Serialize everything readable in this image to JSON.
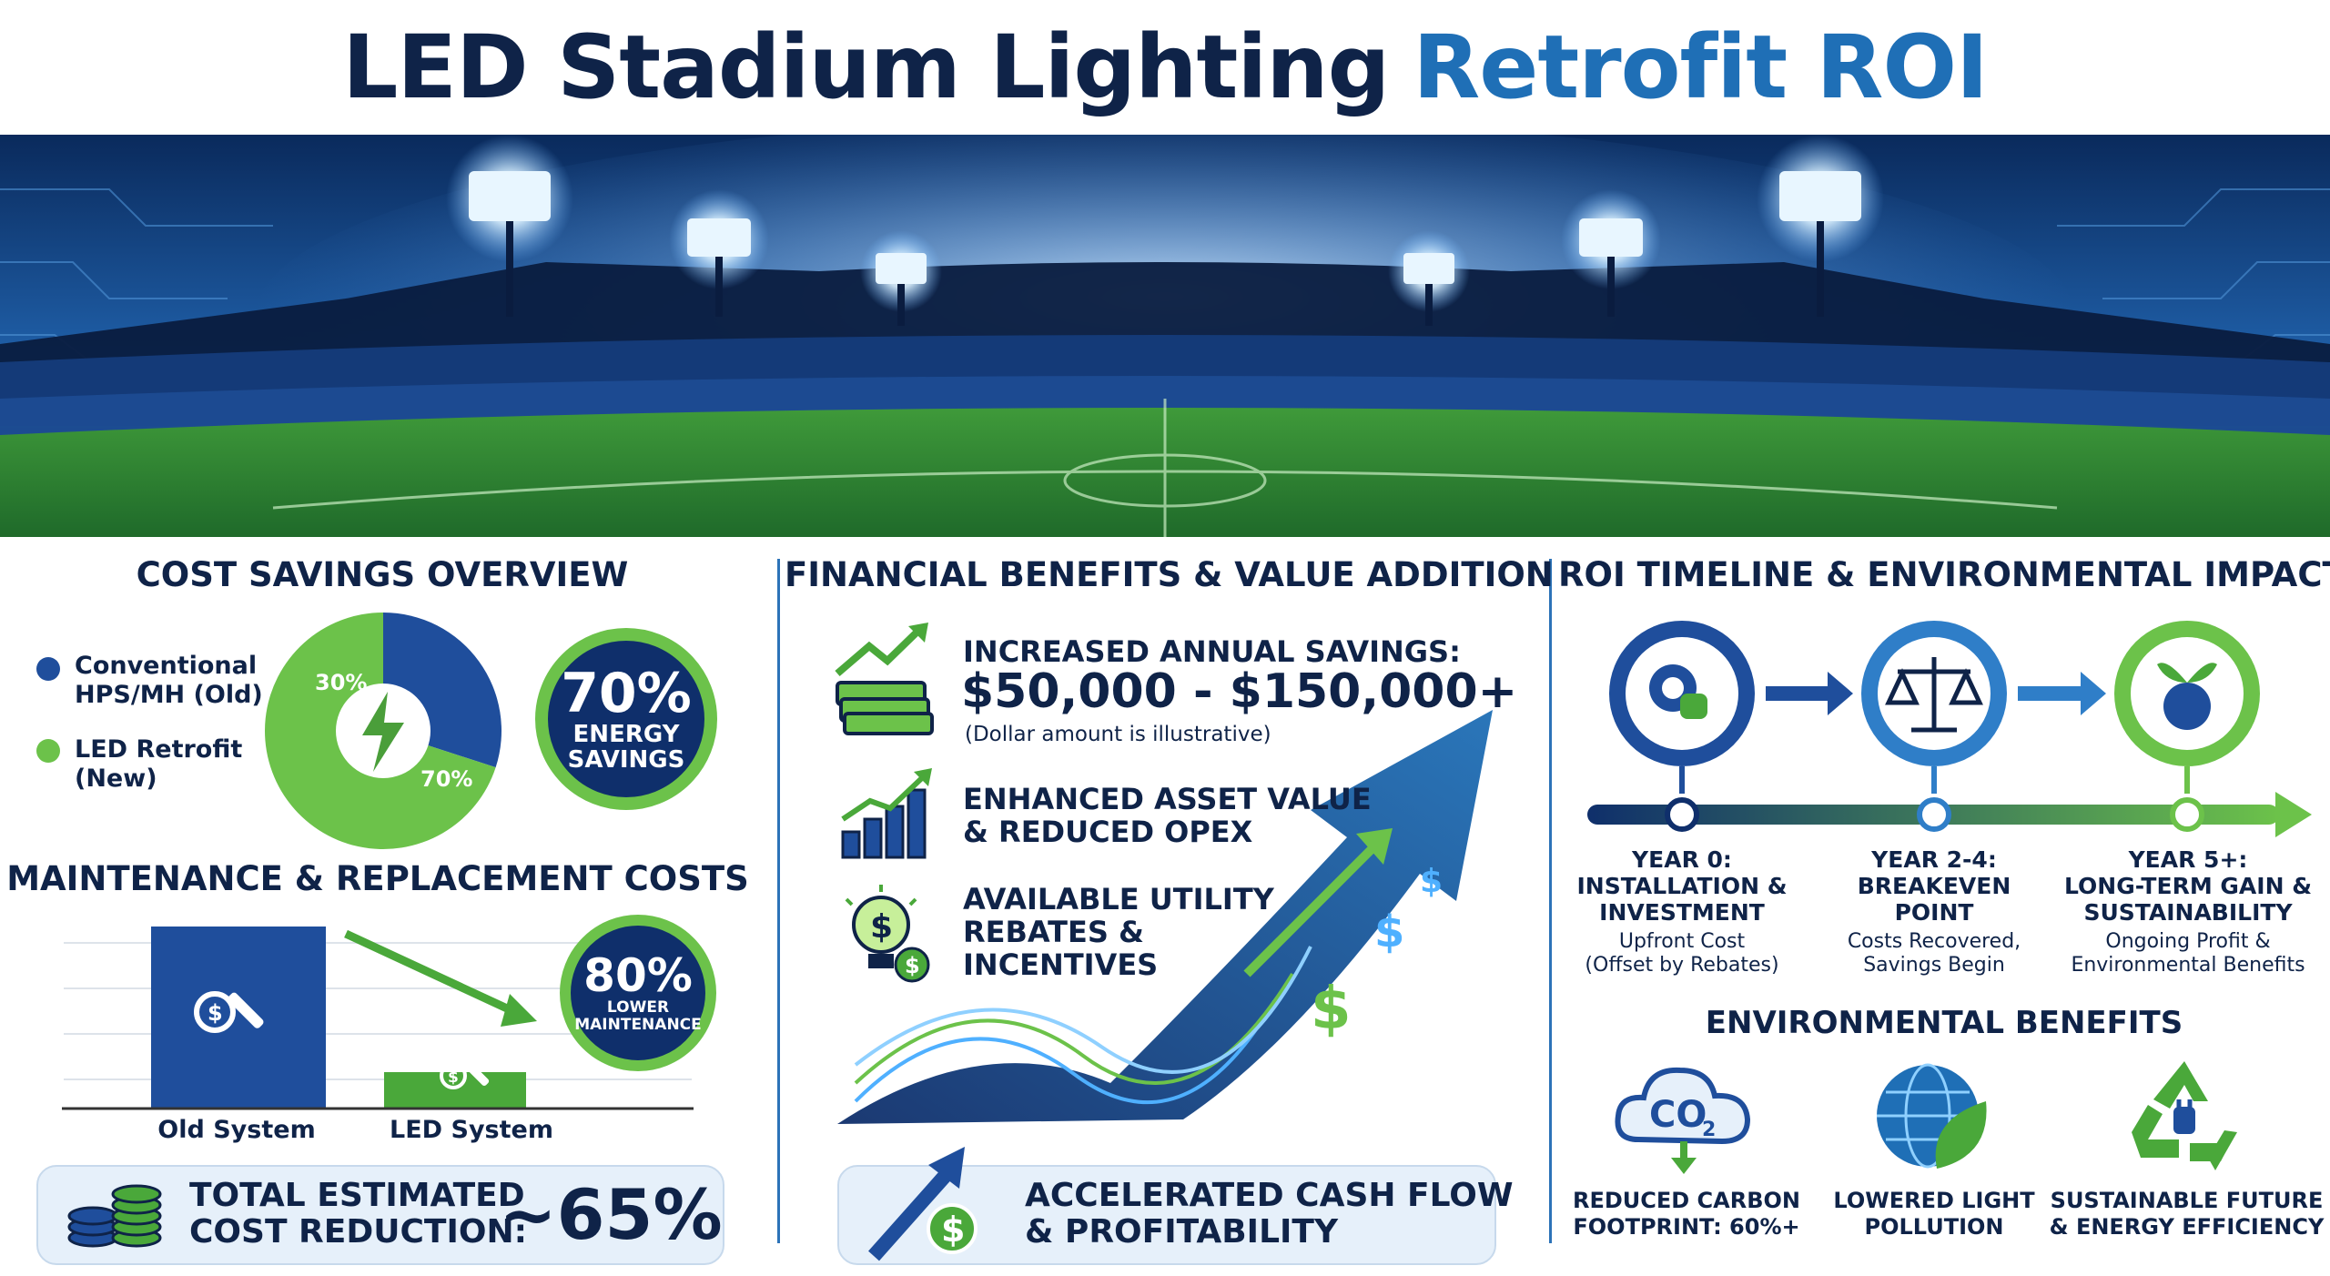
{
  "title": {
    "part1": "LED Stadium Lighting",
    "part2": "Retrofit ROI"
  },
  "colors": {
    "navy": "#0f2348",
    "blue": "#1f6fb6",
    "green": "#6cc24a",
    "light_panel": "#e6f0fa"
  },
  "cost_savings": {
    "section_title": "COST SAVINGS OVERVIEW",
    "legend": [
      {
        "label_line1": "Conventional",
        "label_line2": "HPS/MH (Old)",
        "color": "#1f4e9c"
      },
      {
        "label_line1": "LED Retrofit",
        "label_line2": "(New)",
        "color": "#6cc24a"
      }
    ],
    "chart_data": {
      "type": "pie",
      "categories": [
        "Conventional HPS/MH (Old)",
        "LED Retrofit (New)"
      ],
      "values": [
        30,
        70
      ],
      "labels": [
        "30%",
        "70%"
      ]
    },
    "energy_badge": {
      "pct": "70%",
      "line1": "ENERGY",
      "line2": "SAVINGS"
    }
  },
  "maintenance": {
    "section_title": "MAINTENANCE & REPLACEMENT COSTS",
    "chart_data": {
      "type": "bar",
      "categories": [
        "Old System",
        "LED System"
      ],
      "values": [
        100,
        20
      ]
    },
    "badge": {
      "pct": "80%",
      "line1": "LOWER",
      "line2": "MAINTENANCE"
    }
  },
  "total_reduction": {
    "line1": "TOTAL ESTIMATED",
    "line2": "COST REDUCTION:",
    "value": "~65%"
  },
  "financial": {
    "section_title": "FINANCIAL BENEFITS & VALUE ADDITION",
    "item1": {
      "line1": "INCREASED ANNUAL SAVINGS:",
      "amount": "$50,000 - $150,000+",
      "note": "(Dollar amount is illustrative)"
    },
    "item2": {
      "line1": "ENHANCED ASSET VALUE",
      "line2": "& REDUCED OPEX"
    },
    "item3": {
      "line1": "AVAILABLE UTILITY",
      "line2": "REBATES &",
      "line3": "INCENTIVES"
    },
    "cashflow": {
      "line1": "ACCELERATED CASH FLOW",
      "line2": "& PROFITABILITY"
    }
  },
  "roi": {
    "section_title": "ROI TIMELINE & ENVIRONMENTAL IMPACT",
    "milestones": [
      {
        "head1": "YEAR 0:",
        "head2": "INSTALLATION &",
        "head3": "INVESTMENT",
        "sub1": "Upfront Cost",
        "sub2": "(Offset by Rebates)"
      },
      {
        "head1": "YEAR 2-4:",
        "head2": "BREAKEVEN",
        "head3": "POINT",
        "sub1": "Costs Recovered,",
        "sub2": "Savings Begin"
      },
      {
        "head1": "YEAR 5+:",
        "head2": "LONG-TERM GAIN &",
        "head3": "SUSTAINABILITY",
        "sub1": "Ongoing Profit &",
        "sub2": "Environmental Benefits"
      }
    ],
    "env_title": "ENVIRONMENTAL BENEFITS",
    "co2_text": "CO",
    "co2_sub": "2",
    "env": [
      {
        "line1": "REDUCED CARBON",
        "line2": "FOOTPRINT: 60%+"
      },
      {
        "line1": "LOWERED LIGHT",
        "line2": "POLLUTION"
      },
      {
        "line1": "SUSTAINABLE FUTURE",
        "line2": "& ENERGY EFFICIENCY"
      }
    ]
  }
}
